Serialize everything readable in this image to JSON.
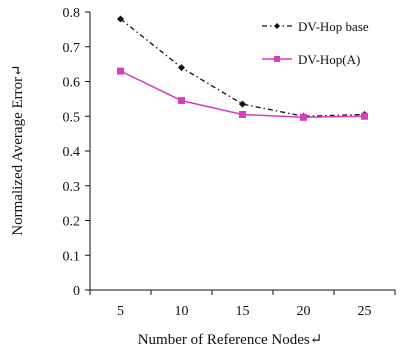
{
  "chart_data": {
    "type": "line",
    "title": "",
    "xlabel": "Number of Reference Nodes↵",
    "ylabel": "Normalized Average Error↵",
    "categories": [
      "5",
      "10",
      "15",
      "20",
      "25"
    ],
    "ylim": [
      0,
      0.8
    ],
    "yticks": [
      "0",
      "0.1",
      "0.2",
      "0.3",
      "0.4",
      "0.5",
      "0.6",
      "0.7",
      "0.8"
    ],
    "legend_position": "top-right",
    "series": [
      {
        "name": "DV-Hop base",
        "values": [
          0.78,
          0.64,
          0.535,
          0.5,
          0.505
        ],
        "color": "#111111",
        "style": "dash-dot",
        "marker": "diamond"
      },
      {
        "name": "DV-Hop(A)",
        "values": [
          0.63,
          0.545,
          0.505,
          0.497,
          0.5
        ],
        "color": "#d63fbf",
        "style": "solid",
        "marker": "square"
      }
    ]
  }
}
